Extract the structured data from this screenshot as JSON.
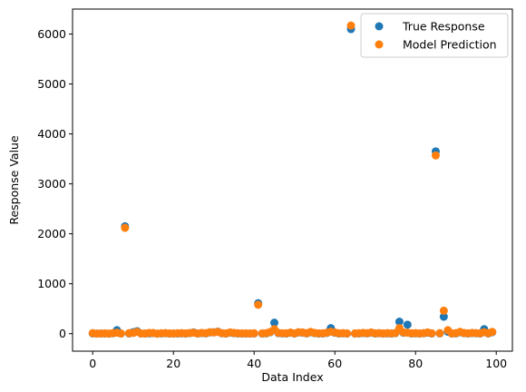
{
  "chart_data": {
    "type": "scatter",
    "title": "",
    "xlabel": "Data Index",
    "ylabel": "Response Value",
    "xlim": [
      -5,
      104
    ],
    "ylim": [
      -350,
      6500
    ],
    "xticks": [
      0,
      20,
      40,
      60,
      80,
      100
    ],
    "yticks": [
      0,
      1000,
      2000,
      3000,
      4000,
      5000,
      6000
    ],
    "grid": false,
    "legend_position": "top-right",
    "x": [
      0,
      1,
      2,
      3,
      4,
      5,
      6,
      7,
      8,
      9,
      10,
      11,
      12,
      13,
      14,
      15,
      16,
      17,
      18,
      19,
      20,
      21,
      22,
      23,
      24,
      25,
      26,
      27,
      28,
      29,
      30,
      31,
      32,
      33,
      34,
      35,
      36,
      37,
      38,
      39,
      40,
      41,
      42,
      43,
      44,
      45,
      46,
      47,
      48,
      49,
      50,
      51,
      52,
      53,
      54,
      55,
      56,
      57,
      58,
      59,
      60,
      61,
      62,
      63,
      64,
      65,
      66,
      67,
      68,
      69,
      70,
      71,
      72,
      73,
      74,
      75,
      76,
      77,
      78,
      79,
      80,
      81,
      82,
      83,
      84,
      85,
      86,
      87,
      88,
      89,
      90,
      91,
      92,
      93,
      94,
      95,
      96,
      97,
      98,
      99
    ],
    "series": [
      {
        "name": "True Response",
        "color": "#1f77b4",
        "values": [
          5,
          3,
          2,
          4,
          0,
          8,
          70,
          2,
          2150,
          5,
          30,
          50,
          3,
          2,
          6,
          10,
          0,
          5,
          8,
          3,
          2,
          4,
          6,
          3,
          10,
          25,
          2,
          12,
          6,
          25,
          30,
          40,
          8,
          2,
          20,
          10,
          4,
          2,
          3,
          1,
          5,
          610,
          3,
          6,
          30,
          220,
          12,
          5,
          4,
          18,
          2,
          25,
          20,
          6,
          30,
          10,
          3,
          4,
          15,
          110,
          20,
          4,
          6,
          3,
          6100,
          2,
          5,
          12,
          6,
          20,
          4,
          8,
          2,
          6,
          3,
          10,
          240,
          20,
          180,
          4,
          6,
          3,
          8,
          20,
          4,
          3650,
          6,
          340,
          40,
          3,
          6,
          30,
          10,
          4,
          12,
          8,
          4,
          90,
          5,
          30
        ]
      },
      {
        "name": "Model Prediction",
        "color": "#ff7f0e",
        "values": [
          10,
          2,
          4,
          6,
          3,
          12,
          20,
          4,
          2120,
          10,
          15,
          35,
          5,
          4,
          15,
          14,
          3,
          9,
          12,
          6,
          5,
          8,
          10,
          6,
          14,
          20,
          5,
          16,
          10,
          30,
          25,
          35,
          12,
          6,
          25,
          15,
          8,
          6,
          6,
          4,
          8,
          580,
          7,
          10,
          35,
          90,
          18,
          9,
          8,
          22,
          6,
          30,
          24,
          10,
          35,
          15,
          7,
          8,
          20,
          40,
          25,
          8,
          10,
          6,
          6170,
          6,
          9,
          16,
          10,
          24,
          8,
          12,
          6,
          10,
          7,
          14,
          110,
          25,
          20,
          8,
          10,
          6,
          12,
          25,
          8,
          3570,
          10,
          460,
          70,
          6,
          10,
          35,
          14,
          8,
          16,
          12,
          8,
          30,
          10,
          35
        ]
      }
    ]
  }
}
